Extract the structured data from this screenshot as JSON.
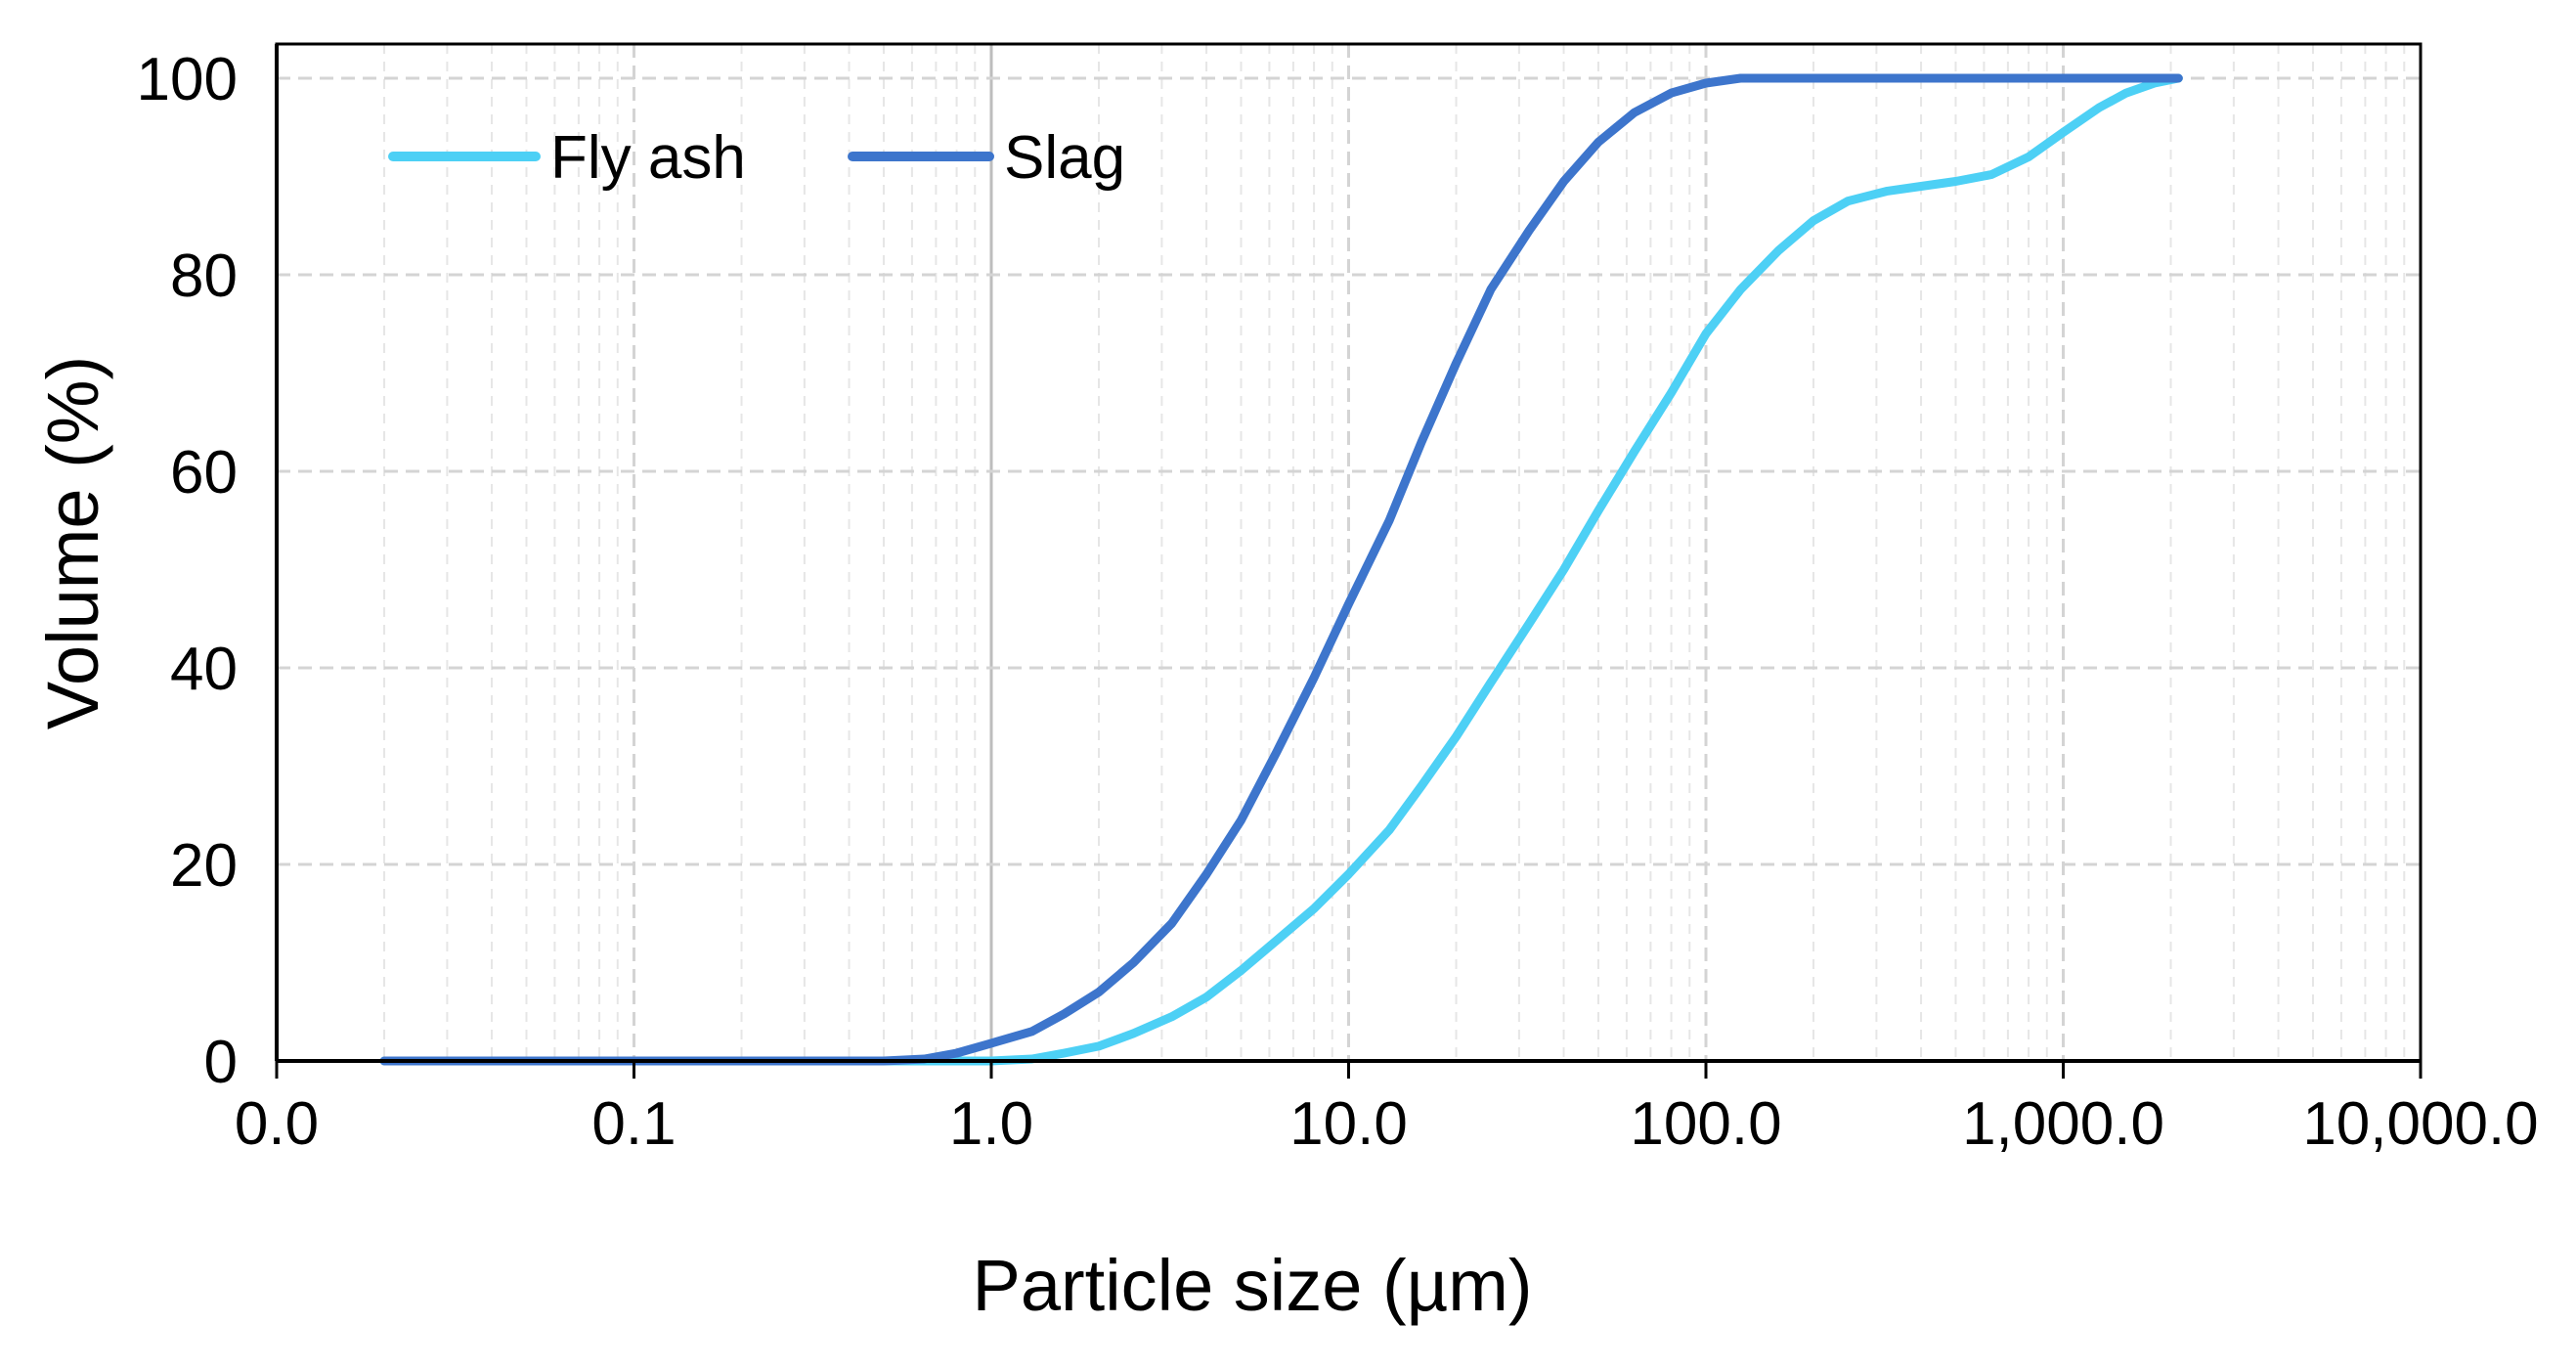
{
  "chart_data": {
    "type": "line",
    "title": "",
    "xlabel": "Particle size (µm)",
    "ylabel": "Volume (%)",
    "xscale": "log",
    "xlim": [
      0.01,
      10000
    ],
    "ylim": [
      0,
      100
    ],
    "xticks": [
      0.01,
      0.1,
      1,
      10,
      100,
      1000,
      10000
    ],
    "xtick_labels": [
      "0.0",
      "0.1",
      "1.0",
      "10.0",
      "100.0",
      "1,000.0",
      "10,000.0"
    ],
    "yticks": [
      0,
      20,
      40,
      60,
      80,
      100
    ],
    "ytick_labels": [
      "0",
      "20",
      "40",
      "60",
      "80",
      "100"
    ],
    "grid": true,
    "legend_position": "top-left",
    "series": [
      {
        "name": "Fly ash",
        "color": "#4dd0f5",
        "x": [
          0.02,
          0.1,
          0.5,
          1.0,
          1.3,
          1.6,
          2.0,
          2.5,
          3.2,
          4.0,
          5.0,
          6.3,
          8.0,
          10,
          13,
          16,
          20,
          25,
          32,
          40,
          50,
          63,
          80,
          100,
          125,
          160,
          200,
          250,
          320,
          400,
          500,
          630,
          800,
          1000,
          1260,
          1500,
          1800,
          2100
        ],
        "y": [
          0,
          0,
          0,
          0,
          0.2,
          0.8,
          1.5,
          2.8,
          4.5,
          6.5,
          9.2,
          12.3,
          15.5,
          19.0,
          23.5,
          28.0,
          33.0,
          38.5,
          44.5,
          50.0,
          56.0,
          62.0,
          68.0,
          74.0,
          78.5,
          82.5,
          85.5,
          87.5,
          88.5,
          89.0,
          89.5,
          90.2,
          92.0,
          94.5,
          97.0,
          98.5,
          99.5,
          100
        ]
      },
      {
        "name": "Slag",
        "color": "#3d75cc",
        "x": [
          0.02,
          0.1,
          0.5,
          0.65,
          0.8,
          1.0,
          1.3,
          1.6,
          2.0,
          2.5,
          3.2,
          4.0,
          5.0,
          6.3,
          8.0,
          10,
          13,
          16,
          20,
          25,
          32,
          40,
          50,
          63,
          80,
          100,
          125,
          160,
          200,
          500,
          1000,
          2100
        ],
        "y": [
          0,
          0,
          0,
          0.2,
          0.8,
          1.8,
          3.0,
          4.8,
          7.0,
          10.0,
          14.0,
          19.0,
          24.5,
          31.5,
          39.0,
          46.5,
          55.0,
          63.0,
          71.0,
          78.5,
          84.5,
          89.5,
          93.5,
          96.5,
          98.5,
          99.5,
          100,
          100,
          100,
          100,
          100,
          100
        ]
      }
    ]
  }
}
